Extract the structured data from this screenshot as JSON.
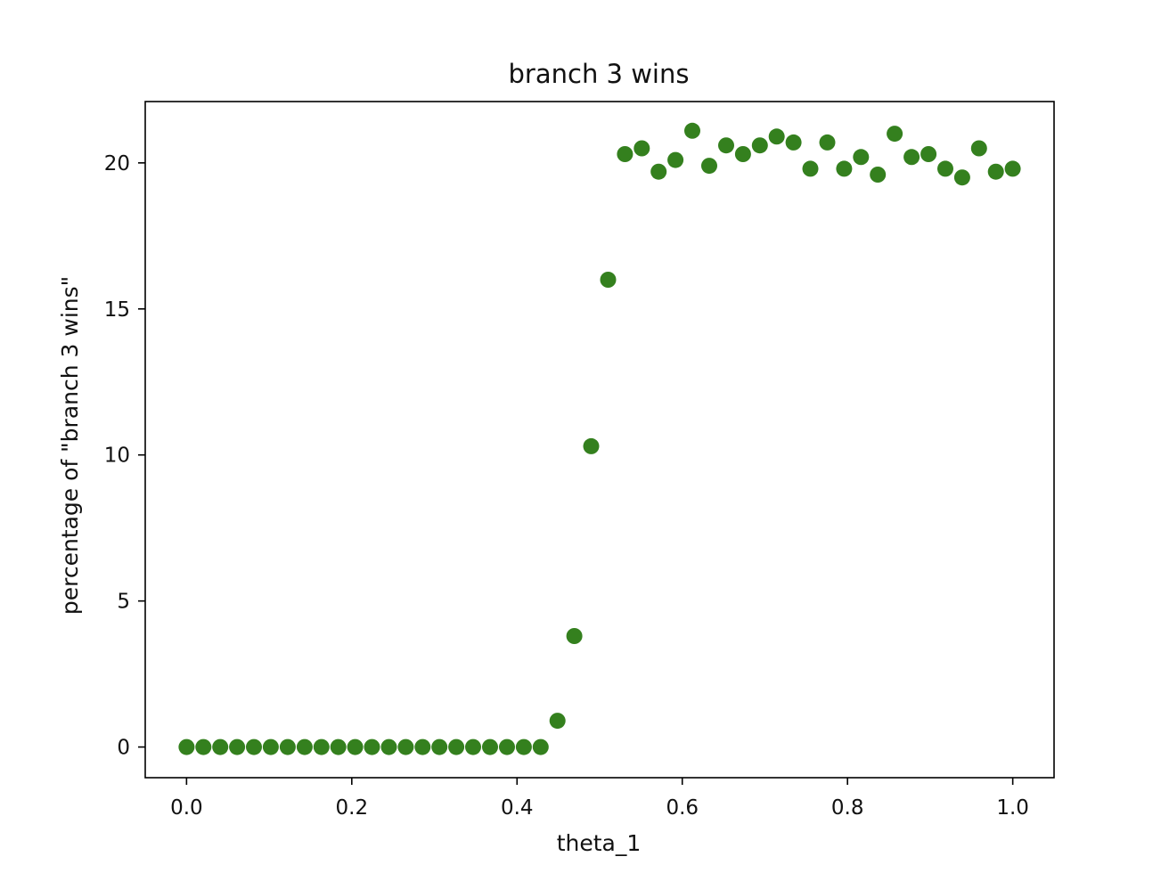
{
  "chart_data": {
    "type": "scatter",
    "title": "branch 3 wins",
    "xlabel": "theta_1",
    "ylabel": "percentage of \"branch 3 wins\"",
    "xlim": [
      -0.05,
      1.05
    ],
    "ylim": [
      -1.05,
      22.1
    ],
    "xticks": [
      0.0,
      0.2,
      0.4,
      0.6,
      0.8,
      1.0
    ],
    "xtick_labels": [
      "0.0",
      "0.2",
      "0.4",
      "0.6",
      "0.8",
      "1.0"
    ],
    "yticks": [
      0,
      5,
      10,
      15,
      20
    ],
    "ytick_labels": [
      "0",
      "5",
      "10",
      "15",
      "20"
    ],
    "grid": false,
    "marker_color": "#34801e",
    "series": [
      {
        "x": [
          0.0,
          0.0204,
          0.0408,
          0.0612,
          0.0816,
          0.102,
          0.1224,
          0.1429,
          0.1633,
          0.1837,
          0.2041,
          0.2245,
          0.2449,
          0.2653,
          0.2857,
          0.3061,
          0.3265,
          0.3469,
          0.3673,
          0.3878,
          0.4082,
          0.4286,
          0.449,
          0.4694,
          0.4898,
          0.5102,
          0.5306,
          0.551,
          0.5714,
          0.5918,
          0.6122,
          0.6327,
          0.6531,
          0.6735,
          0.6939,
          0.7143,
          0.7347,
          0.7551,
          0.7755,
          0.7959,
          0.8163,
          0.8367,
          0.8571,
          0.8776,
          0.898,
          0.9184,
          0.9388,
          0.9592,
          0.9796,
          1.0
        ],
        "y": [
          0,
          0,
          0,
          0,
          0,
          0,
          0,
          0,
          0,
          0,
          0,
          0,
          0,
          0,
          0,
          0,
          0,
          0,
          0,
          0,
          0,
          0,
          0.9,
          3.8,
          10.3,
          16.0,
          20.3,
          20.5,
          19.7,
          20.1,
          21.1,
          19.9,
          20.6,
          20.3,
          20.6,
          20.9,
          20.7,
          19.8,
          20.7,
          19.8,
          20.2,
          19.6,
          21.0,
          20.2,
          20.3,
          19.8,
          19.5,
          20.5,
          19.7,
          19.8
        ]
      }
    ]
  }
}
